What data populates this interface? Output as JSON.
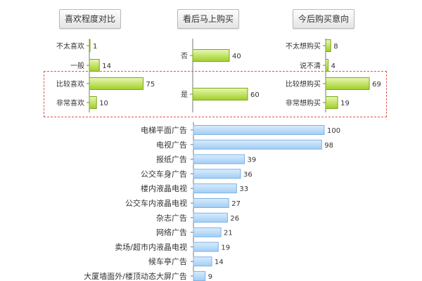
{
  "panels": [
    {
      "title": "喜欢程度对比",
      "categories": [
        "不太喜欢",
        "一般",
        "比较喜欢",
        "非常喜欢"
      ],
      "values": [
        1,
        14,
        75,
        10
      ],
      "value_labels": [
        "1",
        "14",
        "75",
        "10"
      ]
    },
    {
      "title": "看后马上购买",
      "categories": [
        "否",
        "是"
      ],
      "values": [
        40,
        60
      ],
      "value_labels": [
        "40",
        "60"
      ]
    },
    {
      "title": "今后购买意向",
      "categories": [
        "不太想购买",
        "说不清",
        "比较想购买",
        "非常想购买"
      ],
      "values": [
        8,
        4,
        69,
        19
      ],
      "value_labels": [
        "8",
        "4",
        "69",
        "19"
      ]
    }
  ],
  "bottom": {
    "categories": [
      "电梯平面广告",
      "电视广告",
      "报纸广告",
      "公交车身广告",
      "楼内液晶电视",
      "公交车内液晶电视",
      "杂志广告",
      "网络广告",
      "卖场/超市内液晶电视",
      "候车亭广告",
      "大厦墙面外/楼顶动态大屏广告"
    ],
    "values": [
      100,
      98,
      39,
      36,
      33,
      27,
      26,
      21,
      19,
      14,
      9
    ],
    "value_labels": [
      "100",
      "98",
      "39",
      "36",
      "33",
      "27",
      "26",
      "21",
      "19",
      "14",
      "9"
    ]
  },
  "chart_data": [
    {
      "type": "bar",
      "orientation": "horizontal",
      "title": "喜欢程度对比",
      "categories": [
        "不太喜欢",
        "一般",
        "比较喜欢",
        "非常喜欢"
      ],
      "values": [
        1,
        14,
        75,
        10
      ]
    },
    {
      "type": "bar",
      "orientation": "horizontal",
      "title": "看后马上购买",
      "categories": [
        "否",
        "是"
      ],
      "values": [
        40,
        60
      ]
    },
    {
      "type": "bar",
      "orientation": "horizontal",
      "title": "今后购买意向",
      "categories": [
        "不太想购买",
        "说不清",
        "比较想购买",
        "非常想购买"
      ],
      "values": [
        8,
        4,
        69,
        19
      ]
    },
    {
      "type": "bar",
      "orientation": "horizontal",
      "categories": [
        "电梯平面广告",
        "电视广告",
        "报纸广告",
        "公交车身广告",
        "楼内液晶电视",
        "公交车内液晶电视",
        "杂志广告",
        "网络广告",
        "卖场/超市内液晶电视",
        "候车亭广告",
        "大厦墙面外/楼顶动态大屏广告"
      ],
      "values": [
        100,
        98,
        39,
        36,
        33,
        27,
        26,
        21,
        19,
        14,
        9
      ]
    }
  ],
  "colors": {
    "green_bar_top": "#eaf7b5",
    "green_bar_bottom": "#9fcf26",
    "green_bar_border": "#7aa814",
    "blue_bar_top": "#d9ecfc",
    "blue_bar_bottom": "#a2cdf5",
    "blue_bar_border": "#7fb2e3",
    "highlight_dash": "#e05555"
  }
}
